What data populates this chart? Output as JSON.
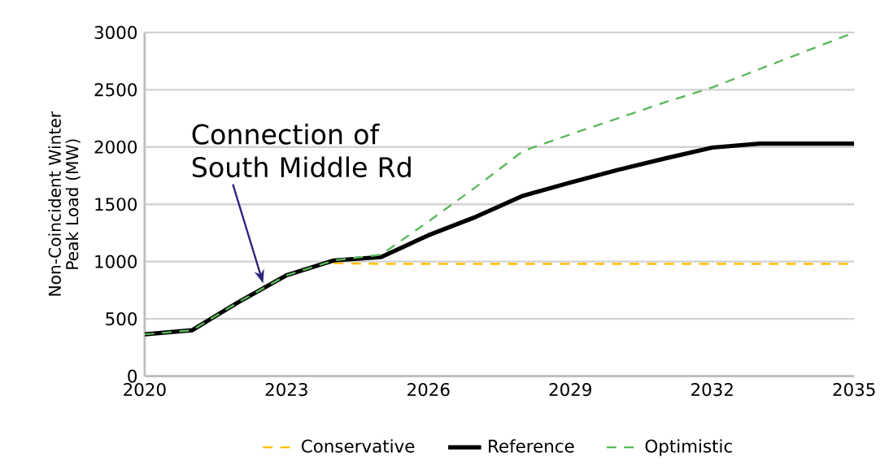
{
  "chart_data": {
    "type": "line",
    "ylabel": "Non-Coincident Winter Peak Load (MW)",
    "x": [
      2020,
      2021,
      2022,
      2023,
      2024,
      2025,
      2026,
      2027,
      2028,
      2029,
      2030,
      2031,
      2032,
      2033,
      2034,
      2035
    ],
    "series": [
      {
        "name": "Conservative",
        "color": "#ffc000",
        "line_style": "dashed",
        "values": [
          null,
          null,
          null,
          null,
          985,
          980,
          980,
          980,
          980,
          980,
          980,
          980,
          980,
          980,
          980,
          980
        ]
      },
      {
        "name": "Reference",
        "color": "#000000",
        "line_style": "solid",
        "values": [
          365,
          400,
          650,
          880,
          1010,
          1040,
          1230,
          1390,
          1575,
          1690,
          1800,
          1900,
          1995,
          2030,
          2030,
          2030
        ]
      },
      {
        "name": "Optimistic",
        "color": "#5cb85c",
        "line_style": "dashed",
        "values": [
          365,
          400,
          650,
          880,
          1010,
          1060,
          1350,
          1650,
          1965,
          2110,
          2250,
          2390,
          2520,
          2680,
          2840,
          3000
        ]
      }
    ],
    "xlim": [
      2020,
      2035
    ],
    "xticks": [
      2020,
      2023,
      2026,
      2029,
      2032,
      2035
    ],
    "ylim": [
      0,
      3000
    ],
    "yticks": [
      0,
      500,
      1000,
      1500,
      2000,
      2500,
      3000
    ],
    "grid": "y",
    "legend": "bottom",
    "marker": "none",
    "annotations": [
      "Connection of\nSouth Middle Rd"
    ]
  }
}
